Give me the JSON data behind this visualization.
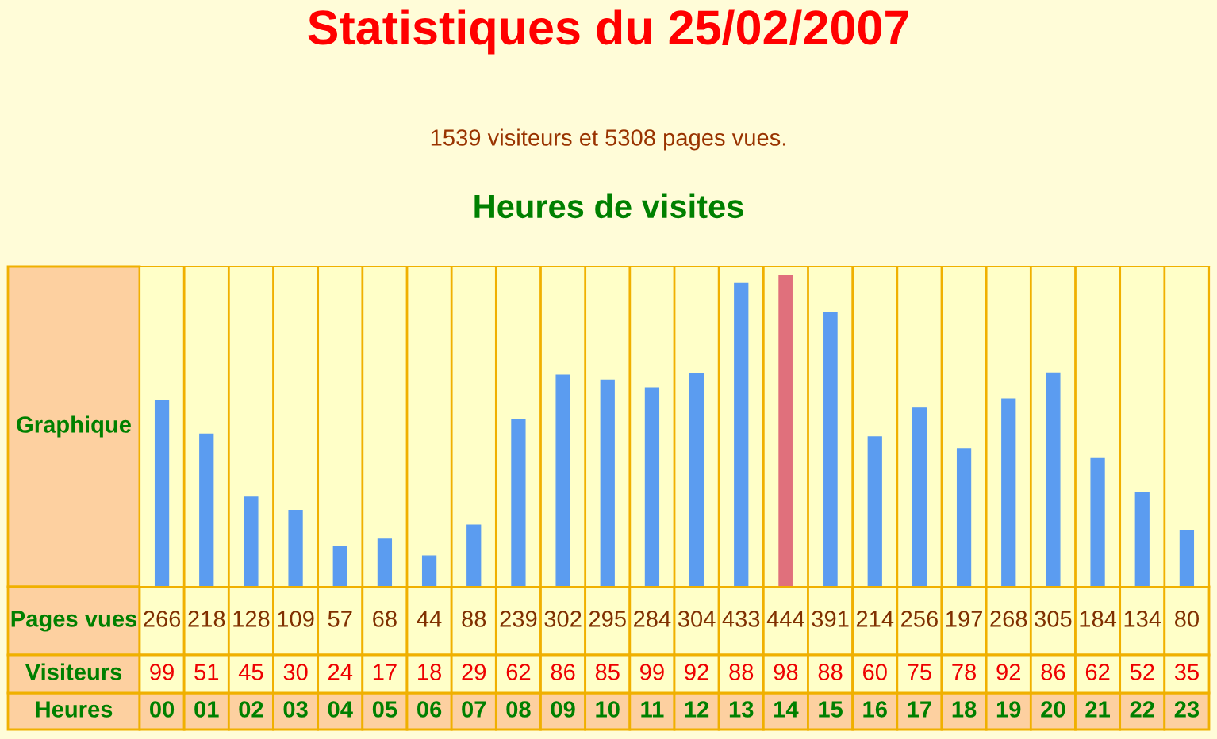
{
  "chart_data": [
    {
      "type": "bar",
      "title": "Statistiques du 25/02/2007",
      "subtitle": "1539 visiteurs et 5308 pages vues.",
      "annotations": [
        "Heures de visites"
      ],
      "ylabel": "Graphique",
      "xlabel": "Heures",
      "categories": [
        "00",
        "01",
        "02",
        "03",
        "04",
        "05",
        "06",
        "07",
        "08",
        "09",
        "10",
        "11",
        "12",
        "13",
        "14",
        "15",
        "16",
        "17",
        "18",
        "19",
        "20",
        "21",
        "22",
        "23"
      ],
      "series": [
        {
          "name": "Pages vues",
          "values": [
            266,
            218,
            128,
            109,
            57,
            68,
            44,
            88,
            239,
            302,
            295,
            284,
            304,
            433,
            444,
            391,
            214,
            256,
            197,
            268,
            305,
            184,
            134,
            80
          ],
          "colors": [
            "#5b9cf0",
            "#5b9cf0",
            "#5b9cf0",
            "#5b9cf0",
            "#5b9cf0",
            "#5b9cf0",
            "#5b9cf0",
            "#5b9cf0",
            "#5b9cf0",
            "#5b9cf0",
            "#5b9cf0",
            "#5b9cf0",
            "#5b9cf0",
            "#5b9cf0",
            "#e0707c",
            "#5b9cf0",
            "#5b9cf0",
            "#5b9cf0",
            "#5b9cf0",
            "#5b9cf0",
            "#5b9cf0",
            "#5b9cf0",
            "#5b9cf0",
            "#5b9cf0"
          ]
        }
      ],
      "data_labels": true,
      "grid": "x",
      "legend": "left"
    },
    {
      "type": "other",
      "ylabel": "Visiteurs",
      "values": [
        99,
        51,
        45,
        30,
        24,
        17,
        18,
        29,
        62,
        86,
        85,
        99,
        92,
        88,
        98,
        88,
        60,
        75,
        78,
        92,
        86,
        62,
        52,
        35
      ],
      "color": "#ee0000",
      "data_labels": true
    }
  ]
}
